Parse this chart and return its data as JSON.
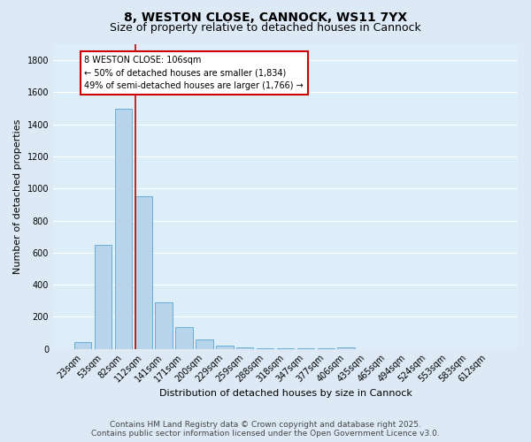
{
  "title": "8, WESTON CLOSE, CANNOCK, WS11 7YX",
  "subtitle": "Size of property relative to detached houses in Cannock",
  "xlabel": "Distribution of detached houses by size in Cannock",
  "ylabel": "Number of detached properties",
  "bar_labels": [
    "23sqm",
    "53sqm",
    "82sqm",
    "112sqm",
    "141sqm",
    "171sqm",
    "200sqm",
    "229sqm",
    "259sqm",
    "288sqm",
    "318sqm",
    "347sqm",
    "377sqm",
    "406sqm",
    "435sqm",
    "465sqm",
    "494sqm",
    "524sqm",
    "553sqm",
    "583sqm",
    "612sqm"
  ],
  "bar_values": [
    45,
    650,
    1500,
    950,
    290,
    135,
    60,
    20,
    8,
    3,
    2,
    1,
    1,
    10,
    0,
    0,
    0,
    0,
    0,
    0,
    0
  ],
  "bar_color": "#b8d4eb",
  "bar_edge_color": "#6aaed6",
  "vline_color": "#cc0000",
  "annotation_text": "8 WESTON CLOSE: 106sqm\n← 50% of detached houses are smaller (1,834)\n49% of semi-detached houses are larger (1,766) →",
  "annotation_box_color": "#ffffff",
  "annotation_box_edge_color": "#cc0000",
  "ylim": [
    0,
    1900
  ],
  "yticks": [
    0,
    200,
    400,
    600,
    800,
    1000,
    1200,
    1400,
    1600,
    1800
  ],
  "bg_color": "#ddeaf6",
  "plot_bg_color": "#ddeef8",
  "grid_color": "#ffffff",
  "footer_text": "Contains HM Land Registry data © Crown copyright and database right 2025.\nContains public sector information licensed under the Open Government Licence v3.0.",
  "title_fontsize": 10,
  "subtitle_fontsize": 9,
  "label_fontsize": 8,
  "tick_fontsize": 7,
  "footer_fontsize": 6.5
}
